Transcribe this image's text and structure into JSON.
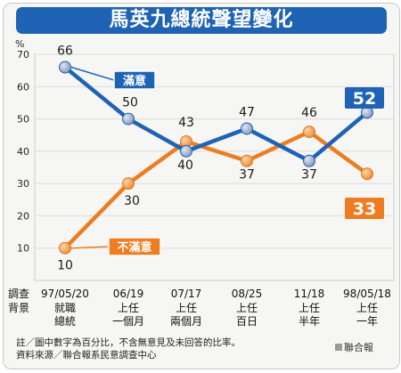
{
  "title": "馬英九總統聲望變化",
  "chart_data": {
    "type": "line",
    "ylabel": "%",
    "ylim": [
      0,
      70
    ],
    "yticks": [
      10,
      20,
      30,
      40,
      50,
      60,
      70
    ],
    "row_label_1": "調查",
    "row_label_2": "背景",
    "categories": [
      {
        "date": "97/05/20",
        "label1": "就職",
        "label2": "總統"
      },
      {
        "date": "06/19",
        "label1": "上任",
        "label2": "一個月"
      },
      {
        "date": "07/17",
        "label1": "上任",
        "label2": "兩個月"
      },
      {
        "date": "08/25",
        "label1": "上任",
        "label2": "百日"
      },
      {
        "date": "11/18",
        "label1": "上任",
        "label2": "半年"
      },
      {
        "date": "98/05/18",
        "label1": "上任",
        "label2": "一年"
      }
    ],
    "series": [
      {
        "name": "滿意",
        "color": "#1f63b4",
        "values": [
          66,
          50,
          40,
          47,
          37,
          52
        ]
      },
      {
        "name": "不滿意",
        "color": "#ee7d21",
        "values": [
          10,
          30,
          43,
          37,
          46,
          33
        ]
      }
    ],
    "grid": true
  },
  "note": "註／圖中數字為百分比，不含無意見及未回答的比率。",
  "source": "資料來源／聯合報系民意調查中心",
  "credit": "聯合報",
  "colors": {
    "title_bg": "#1f63b4",
    "satisfied": "#1f63b4",
    "dissatisfied": "#ee7d21"
  }
}
